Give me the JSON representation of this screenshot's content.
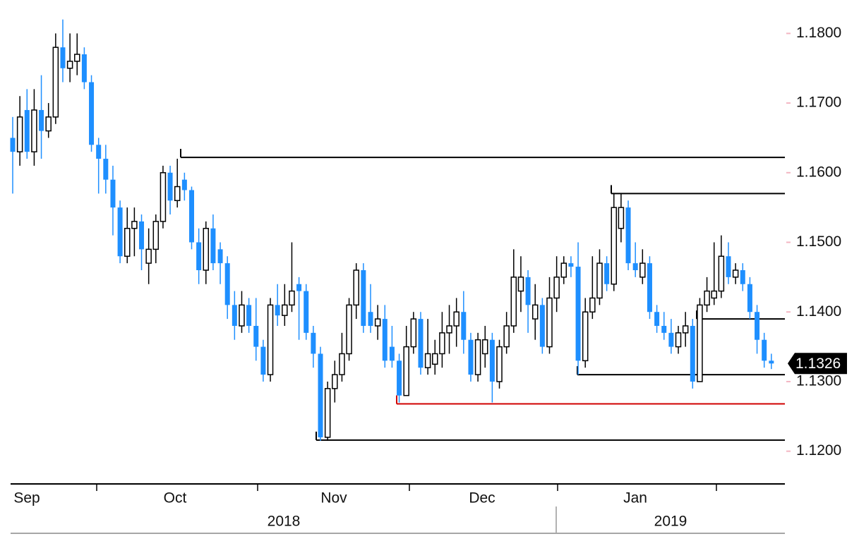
{
  "chart_data": {
    "type": "candlestick",
    "open": [
      1.165,
      1.163,
      1.169,
      1.163,
      1.169,
      1.166,
      1.168,
      1.178,
      1.175,
      1.176,
      1.177,
      1.173,
      1.164,
      1.162,
      1.159,
      1.155,
      1.148,
      1.152,
      1.153,
      1.147,
      1.149,
      1.153,
      1.16,
      1.156,
      1.159,
      1.1575,
      1.15,
      1.146,
      1.152,
      1.149,
      1.147,
      1.141,
      1.138,
      1.141,
      1.138,
      1.135,
      1.131,
      1.141,
      1.1395,
      1.141,
      1.144,
      1.143,
      1.137,
      1.134,
      1.122,
      1.129,
      1.131,
      1.134,
      1.141,
      1.146,
      1.14,
      1.138,
      1.139,
      1.135,
      1.133,
      1.128,
      1.135,
      1.139,
      1.132,
      1.1325,
      1.134,
      1.137,
      1.138,
      1.14,
      1.136,
      1.131,
      1.134,
      1.136,
      1.13,
      1.135,
      1.138,
      1.143,
      1.145,
      1.139,
      1.141,
      1.135,
      1.142,
      1.145,
      1.147,
      1.1465,
      1.133,
      1.14,
      1.142,
      1.147,
      1.144,
      1.152,
      1.155,
      1.147,
      1.145,
      1.147,
      1.14,
      1.138,
      1.137,
      1.135,
      1.137,
      1.138,
      1.13,
      1.141,
      1.142,
      1.143,
      1.148,
      1.145,
      1.146,
      1.144,
      1.14,
      1.136,
      1.133
    ],
    "high": [
      1.168,
      1.171,
      1.172,
      1.172,
      1.174,
      1.17,
      1.18,
      1.182,
      1.18,
      1.18,
      1.178,
      1.174,
      1.165,
      1.164,
      1.161,
      1.156,
      1.155,
      1.155,
      1.154,
      1.152,
      1.154,
      1.161,
      1.161,
      1.162,
      1.16,
      1.158,
      1.152,
      1.153,
      1.154,
      1.15,
      1.148,
      1.143,
      1.143,
      1.142,
      1.142,
      1.136,
      1.142,
      1.144,
      1.144,
      1.15,
      1.145,
      1.144,
      1.138,
      1.135,
      1.13,
      1.133,
      1.137,
      1.142,
      1.147,
      1.147,
      1.144,
      1.141,
      1.141,
      1.138,
      1.134,
      1.138,
      1.14,
      1.14,
      1.139,
      1.136,
      1.14,
      1.141,
      1.142,
      1.143,
      1.137,
      1.137,
      1.138,
      1.137,
      1.136,
      1.14,
      1.149,
      1.148,
      1.146,
      1.144,
      1.142,
      1.145,
      1.148,
      1.148,
      1.148,
      1.15,
      1.142,
      1.148,
      1.149,
      1.148,
      1.157,
      1.157,
      1.156,
      1.15,
      1.149,
      1.148,
      1.141,
      1.14,
      1.139,
      1.138,
      1.14,
      1.139,
      1.142,
      1.145,
      1.15,
      1.151,
      1.15,
      1.147,
      1.147,
      1.145,
      1.141,
      1.137,
      1.134
    ],
    "low": [
      1.157,
      1.161,
      1.162,
      1.161,
      1.162,
      1.165,
      1.167,
      1.173,
      1.173,
      1.174,
      1.172,
      1.163,
      1.157,
      1.157,
      1.151,
      1.147,
      1.147,
      1.148,
      1.146,
      1.144,
      1.147,
      1.152,
      1.154,
      1.155,
      1.156,
      1.149,
      1.144,
      1.144,
      1.146,
      1.144,
      1.139,
      1.136,
      1.137,
      1.137,
      1.133,
      1.13,
      1.13,
      1.138,
      1.138,
      1.14,
      1.136,
      1.136,
      1.132,
      1.1215,
      1.1215,
      1.127,
      1.13,
      1.133,
      1.139,
      1.137,
      1.137,
      1.136,
      1.132,
      1.132,
      1.127,
      1.128,
      1.134,
      1.131,
      1.131,
      1.131,
      1.132,
      1.134,
      1.135,
      1.134,
      1.13,
      1.13,
      1.132,
      1.127,
      1.129,
      1.134,
      1.137,
      1.14,
      1.137,
      1.136,
      1.134,
      1.134,
      1.14,
      1.144,
      1.145,
      1.131,
      1.132,
      1.139,
      1.141,
      1.143,
      1.143,
      1.15,
      1.146,
      1.145,
      1.144,
      1.139,
      1.137,
      1.136,
      1.134,
      1.134,
      1.135,
      1.129,
      1.13,
      1.14,
      1.141,
      1.142,
      1.144,
      1.144,
      1.143,
      1.139,
      1.134,
      1.132,
      1.1318
    ],
    "close": [
      1.163,
      1.168,
      1.163,
      1.169,
      1.166,
      1.168,
      1.178,
      1.175,
      1.176,
      1.177,
      1.173,
      1.164,
      1.162,
      1.159,
      1.155,
      1.148,
      1.152,
      1.153,
      1.149,
      1.149,
      1.153,
      1.16,
      1.156,
      1.158,
      1.1575,
      1.15,
      1.146,
      1.152,
      1.147,
      1.147,
      1.141,
      1.138,
      1.141,
      1.138,
      1.135,
      1.131,
      1.141,
      1.1395,
      1.141,
      1.143,
      1.143,
      1.137,
      1.134,
      1.122,
      1.129,
      1.131,
      1.134,
      1.141,
      1.146,
      1.138,
      1.138,
      1.139,
      1.133,
      1.133,
      1.128,
      1.135,
      1.139,
      1.132,
      1.134,
      1.134,
      1.137,
      1.138,
      1.14,
      1.136,
      1.131,
      1.136,
      1.136,
      1.13,
      1.135,
      1.138,
      1.145,
      1.145,
      1.141,
      1.141,
      1.135,
      1.142,
      1.145,
      1.147,
      1.1465,
      1.133,
      1.14,
      1.142,
      1.147,
      1.144,
      1.155,
      1.155,
      1.147,
      1.146,
      1.147,
      1.14,
      1.138,
      1.137,
      1.135,
      1.137,
      1.138,
      1.13,
      1.141,
      1.143,
      1.143,
      1.148,
      1.145,
      1.146,
      1.144,
      1.14,
      1.136,
      1.133,
      1.1326
    ],
    "up_color": "#ffffff",
    "down_color": "#1e8fff",
    "months": [
      "Sep",
      "Oct",
      "Nov",
      "Dec",
      "Jan"
    ],
    "years": [
      "2018",
      "2019"
    ],
    "ylim": [
      1.115,
      1.1848
    ],
    "yticks": [
      {
        "value": 1.12,
        "label": "1.1200"
      },
      {
        "value": 1.13,
        "label": "1.1300"
      },
      {
        "value": 1.14,
        "label": "1.1400"
      },
      {
        "value": 1.15,
        "label": "1.1500"
      },
      {
        "value": 1.16,
        "label": "1.1600"
      },
      {
        "value": 1.17,
        "label": "1.1700"
      },
      {
        "value": 1.18,
        "label": "1.1800"
      }
    ],
    "levels": [
      {
        "value": 1.1622,
        "color": "#000000"
      },
      {
        "value": 1.157,
        "color": "#000000"
      },
      {
        "value": 1.139,
        "color": "#000000"
      },
      {
        "value": 1.131,
        "color": "#000000"
      },
      {
        "value": 1.1268,
        "color": "#d00000"
      },
      {
        "value": 1.1216,
        "color": "#000000"
      }
    ],
    "last_price": 1.1326
  }
}
